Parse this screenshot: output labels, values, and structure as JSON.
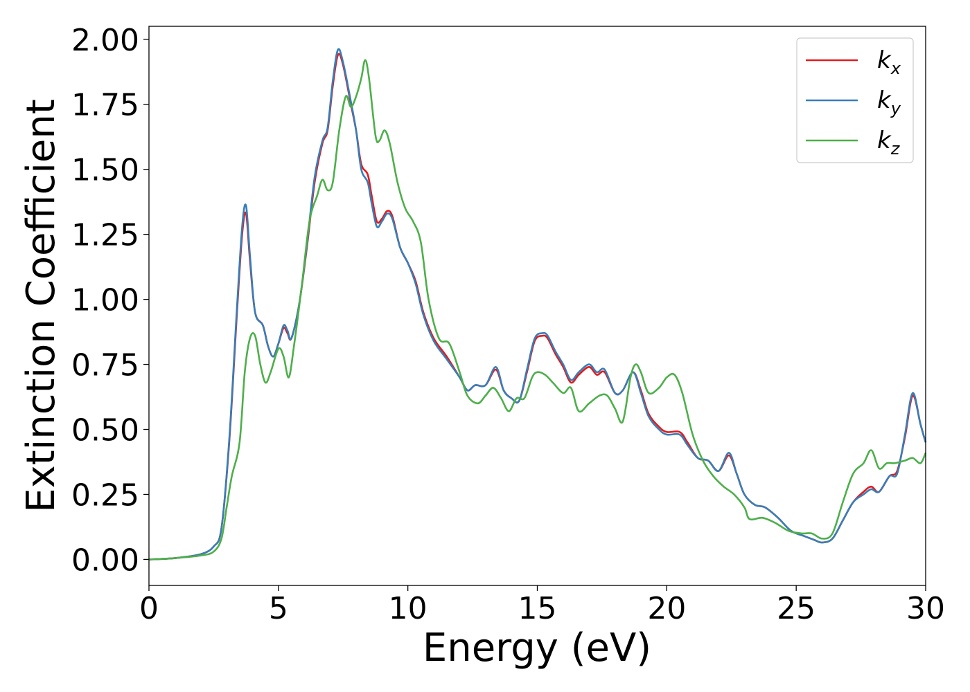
{
  "chart_data": {
    "type": "line",
    "xlabel": "Energy (eV)",
    "ylabel": "Extinction Coefficient",
    "xlim": [
      0,
      30
    ],
    "ylim": [
      -0.1,
      2.05
    ],
    "xticks": [
      0,
      5,
      10,
      15,
      20,
      25,
      30
    ],
    "xtick_labels": [
      "0",
      "5",
      "10",
      "15",
      "20",
      "25",
      "30"
    ],
    "yticks": [
      0,
      0.25,
      0.5,
      0.75,
      1.0,
      1.25,
      1.5,
      1.75,
      2.0
    ],
    "ytick_labels": [
      "0.00",
      "0.25",
      "0.50",
      "0.75",
      "1.00",
      "1.25",
      "1.50",
      "1.75",
      "2.00"
    ],
    "grid": false,
    "legend_position": "top-right",
    "series": [
      {
        "name": "k",
        "subscript": "x",
        "color": "#e41a1c",
        "points": [
          [
            0,
            0
          ],
          [
            1,
            0.005
          ],
          [
            2,
            0.02
          ],
          [
            2.5,
            0.05
          ],
          [
            2.8,
            0.12
          ],
          [
            3.1,
            0.45
          ],
          [
            3.4,
            0.95
          ],
          [
            3.6,
            1.25
          ],
          [
            3.75,
            1.33
          ],
          [
            3.9,
            1.15
          ],
          [
            4.1,
            0.95
          ],
          [
            4.4,
            0.9
          ],
          [
            4.6,
            0.82
          ],
          [
            4.8,
            0.78
          ],
          [
            5.0,
            0.83
          ],
          [
            5.2,
            0.89
          ],
          [
            5.35,
            0.87
          ],
          [
            5.5,
            0.85
          ],
          [
            5.8,
            0.98
          ],
          [
            6.1,
            1.2
          ],
          [
            6.4,
            1.45
          ],
          [
            6.7,
            1.6
          ],
          [
            6.9,
            1.65
          ],
          [
            7.1,
            1.82
          ],
          [
            7.3,
            1.94
          ],
          [
            7.5,
            1.9
          ],
          [
            7.8,
            1.75
          ],
          [
            8.0,
            1.65
          ],
          [
            8.2,
            1.52
          ],
          [
            8.45,
            1.48
          ],
          [
            8.6,
            1.4
          ],
          [
            8.8,
            1.3
          ],
          [
            9.0,
            1.31
          ],
          [
            9.2,
            1.34
          ],
          [
            9.4,
            1.32
          ],
          [
            9.7,
            1.2
          ],
          [
            10.0,
            1.14
          ],
          [
            10.3,
            1.07
          ],
          [
            10.6,
            0.95
          ],
          [
            11.0,
            0.85
          ],
          [
            11.5,
            0.78
          ],
          [
            12.0,
            0.7
          ],
          [
            12.3,
            0.65
          ],
          [
            12.6,
            0.67
          ],
          [
            13.0,
            0.67
          ],
          [
            13.4,
            0.73
          ],
          [
            13.7,
            0.65
          ],
          [
            14.0,
            0.62
          ],
          [
            14.3,
            0.61
          ],
          [
            14.6,
            0.72
          ],
          [
            14.9,
            0.84
          ],
          [
            15.2,
            0.86
          ],
          [
            15.4,
            0.85
          ],
          [
            15.7,
            0.79
          ],
          [
            16.0,
            0.74
          ],
          [
            16.3,
            0.68
          ],
          [
            16.6,
            0.71
          ],
          [
            17.0,
            0.74
          ],
          [
            17.3,
            0.71
          ],
          [
            17.6,
            0.72
          ],
          [
            18.0,
            0.64
          ],
          [
            18.3,
            0.65
          ],
          [
            18.7,
            0.72
          ],
          [
            19.0,
            0.65
          ],
          [
            19.3,
            0.56
          ],
          [
            19.7,
            0.51
          ],
          [
            20.0,
            0.49
          ],
          [
            20.5,
            0.49
          ],
          [
            20.8,
            0.45
          ],
          [
            21.2,
            0.39
          ],
          [
            21.6,
            0.38
          ],
          [
            22.0,
            0.34
          ],
          [
            22.4,
            0.4
          ],
          [
            22.7,
            0.33
          ],
          [
            23.0,
            0.25
          ],
          [
            23.4,
            0.21
          ],
          [
            23.8,
            0.2
          ],
          [
            24.3,
            0.16
          ],
          [
            24.8,
            0.11
          ],
          [
            25.3,
            0.09
          ],
          [
            25.7,
            0.075
          ],
          [
            26.0,
            0.065
          ],
          [
            26.4,
            0.08
          ],
          [
            26.8,
            0.15
          ],
          [
            27.2,
            0.22
          ],
          [
            27.6,
            0.26
          ],
          [
            27.9,
            0.28
          ],
          [
            28.2,
            0.26
          ],
          [
            28.6,
            0.32
          ],
          [
            28.9,
            0.34
          ],
          [
            29.2,
            0.47
          ],
          [
            29.5,
            0.63
          ],
          [
            29.8,
            0.52
          ],
          [
            30.0,
            0.45
          ]
        ]
      },
      {
        "name": "k",
        "subscript": "y",
        "color": "#377eb8",
        "points": [
          [
            0,
            0
          ],
          [
            1,
            0.005
          ],
          [
            2,
            0.02
          ],
          [
            2.5,
            0.05
          ],
          [
            2.8,
            0.12
          ],
          [
            3.1,
            0.46
          ],
          [
            3.4,
            0.97
          ],
          [
            3.6,
            1.28
          ],
          [
            3.75,
            1.36
          ],
          [
            3.9,
            1.17
          ],
          [
            4.1,
            0.95
          ],
          [
            4.4,
            0.9
          ],
          [
            4.6,
            0.82
          ],
          [
            4.8,
            0.78
          ],
          [
            5.0,
            0.83
          ],
          [
            5.2,
            0.9
          ],
          [
            5.35,
            0.88
          ],
          [
            5.5,
            0.85
          ],
          [
            5.8,
            0.98
          ],
          [
            6.1,
            1.21
          ],
          [
            6.4,
            1.47
          ],
          [
            6.7,
            1.61
          ],
          [
            6.9,
            1.66
          ],
          [
            7.1,
            1.84
          ],
          [
            7.3,
            1.96
          ],
          [
            7.5,
            1.91
          ],
          [
            7.8,
            1.76
          ],
          [
            8.0,
            1.65
          ],
          [
            8.2,
            1.5
          ],
          [
            8.45,
            1.45
          ],
          [
            8.6,
            1.37
          ],
          [
            8.8,
            1.28
          ],
          [
            9.0,
            1.3
          ],
          [
            9.2,
            1.33
          ],
          [
            9.4,
            1.31
          ],
          [
            9.7,
            1.2
          ],
          [
            10.0,
            1.14
          ],
          [
            10.3,
            1.06
          ],
          [
            10.6,
            0.94
          ],
          [
            11.0,
            0.84
          ],
          [
            11.5,
            0.77
          ],
          [
            12.0,
            0.7
          ],
          [
            12.3,
            0.65
          ],
          [
            12.6,
            0.67
          ],
          [
            13.0,
            0.67
          ],
          [
            13.4,
            0.74
          ],
          [
            13.7,
            0.65
          ],
          [
            14.0,
            0.62
          ],
          [
            14.3,
            0.61
          ],
          [
            14.6,
            0.73
          ],
          [
            14.9,
            0.85
          ],
          [
            15.2,
            0.87
          ],
          [
            15.4,
            0.86
          ],
          [
            15.7,
            0.8
          ],
          [
            16.0,
            0.75
          ],
          [
            16.3,
            0.69
          ],
          [
            16.6,
            0.72
          ],
          [
            17.0,
            0.75
          ],
          [
            17.3,
            0.72
          ],
          [
            17.6,
            0.73
          ],
          [
            18.0,
            0.64
          ],
          [
            18.3,
            0.65
          ],
          [
            18.7,
            0.72
          ],
          [
            19.0,
            0.64
          ],
          [
            19.3,
            0.55
          ],
          [
            19.7,
            0.5
          ],
          [
            20.0,
            0.48
          ],
          [
            20.5,
            0.48
          ],
          [
            20.8,
            0.44
          ],
          [
            21.2,
            0.39
          ],
          [
            21.6,
            0.38
          ],
          [
            22.0,
            0.34
          ],
          [
            22.4,
            0.41
          ],
          [
            22.7,
            0.33
          ],
          [
            23.0,
            0.25
          ],
          [
            23.4,
            0.21
          ],
          [
            23.8,
            0.2
          ],
          [
            24.3,
            0.16
          ],
          [
            24.8,
            0.11
          ],
          [
            25.3,
            0.09
          ],
          [
            25.7,
            0.075
          ],
          [
            26.0,
            0.065
          ],
          [
            26.4,
            0.08
          ],
          [
            26.8,
            0.15
          ],
          [
            27.2,
            0.22
          ],
          [
            27.6,
            0.25
          ],
          [
            27.9,
            0.27
          ],
          [
            28.2,
            0.26
          ],
          [
            28.6,
            0.32
          ],
          [
            28.9,
            0.33
          ],
          [
            29.2,
            0.48
          ],
          [
            29.5,
            0.64
          ],
          [
            29.8,
            0.52
          ],
          [
            30.0,
            0.45
          ]
        ]
      },
      {
        "name": "k",
        "subscript": "z",
        "color": "#4daf4a",
        "points": [
          [
            0,
            0
          ],
          [
            1,
            0.005
          ],
          [
            2,
            0.015
          ],
          [
            2.5,
            0.03
          ],
          [
            2.8,
            0.08
          ],
          [
            3.0,
            0.2
          ],
          [
            3.2,
            0.32
          ],
          [
            3.5,
            0.45
          ],
          [
            3.7,
            0.72
          ],
          [
            3.9,
            0.85
          ],
          [
            4.1,
            0.86
          ],
          [
            4.3,
            0.75
          ],
          [
            4.5,
            0.68
          ],
          [
            4.7,
            0.72
          ],
          [
            5.0,
            0.81
          ],
          [
            5.2,
            0.78
          ],
          [
            5.4,
            0.7
          ],
          [
            5.6,
            0.82
          ],
          [
            5.9,
            1.05
          ],
          [
            6.2,
            1.3
          ],
          [
            6.5,
            1.4
          ],
          [
            6.7,
            1.46
          ],
          [
            6.9,
            1.42
          ],
          [
            7.1,
            1.45
          ],
          [
            7.35,
            1.65
          ],
          [
            7.6,
            1.78
          ],
          [
            7.8,
            1.74
          ],
          [
            8.0,
            1.78
          ],
          [
            8.2,
            1.85
          ],
          [
            8.35,
            1.92
          ],
          [
            8.5,
            1.85
          ],
          [
            8.75,
            1.63
          ],
          [
            8.9,
            1.61
          ],
          [
            9.1,
            1.65
          ],
          [
            9.3,
            1.6
          ],
          [
            9.6,
            1.45
          ],
          [
            9.9,
            1.35
          ],
          [
            10.2,
            1.3
          ],
          [
            10.5,
            1.22
          ],
          [
            10.8,
            1.0
          ],
          [
            11.2,
            0.85
          ],
          [
            11.6,
            0.83
          ],
          [
            12.0,
            0.72
          ],
          [
            12.3,
            0.63
          ],
          [
            12.7,
            0.6
          ],
          [
            13.0,
            0.63
          ],
          [
            13.3,
            0.66
          ],
          [
            13.6,
            0.62
          ],
          [
            13.9,
            0.57
          ],
          [
            14.2,
            0.62
          ],
          [
            14.5,
            0.62
          ],
          [
            14.8,
            0.7
          ],
          [
            15.0,
            0.72
          ],
          [
            15.3,
            0.71
          ],
          [
            15.6,
            0.68
          ],
          [
            16.0,
            0.64
          ],
          [
            16.3,
            0.66
          ],
          [
            16.6,
            0.57
          ],
          [
            17.0,
            0.6
          ],
          [
            17.4,
            0.63
          ],
          [
            17.7,
            0.63
          ],
          [
            18.0,
            0.58
          ],
          [
            18.3,
            0.53
          ],
          [
            18.6,
            0.7
          ],
          [
            18.8,
            0.75
          ],
          [
            19.0,
            0.72
          ],
          [
            19.3,
            0.64
          ],
          [
            19.7,
            0.66
          ],
          [
            20.0,
            0.7
          ],
          [
            20.3,
            0.71
          ],
          [
            20.6,
            0.64
          ],
          [
            21.0,
            0.48
          ],
          [
            21.4,
            0.38
          ],
          [
            21.8,
            0.32
          ],
          [
            22.2,
            0.28
          ],
          [
            22.6,
            0.25
          ],
          [
            23.0,
            0.2
          ],
          [
            23.2,
            0.155
          ],
          [
            23.7,
            0.16
          ],
          [
            24.2,
            0.14
          ],
          [
            24.7,
            0.11
          ],
          [
            25.2,
            0.1
          ],
          [
            25.6,
            0.1
          ],
          [
            26.0,
            0.08
          ],
          [
            26.4,
            0.1
          ],
          [
            26.8,
            0.22
          ],
          [
            27.2,
            0.33
          ],
          [
            27.6,
            0.37
          ],
          [
            27.9,
            0.42
          ],
          [
            28.2,
            0.35
          ],
          [
            28.5,
            0.37
          ],
          [
            28.8,
            0.37
          ],
          [
            29.2,
            0.38
          ],
          [
            29.5,
            0.39
          ],
          [
            29.8,
            0.37
          ],
          [
            30.0,
            0.41
          ]
        ]
      }
    ]
  }
}
